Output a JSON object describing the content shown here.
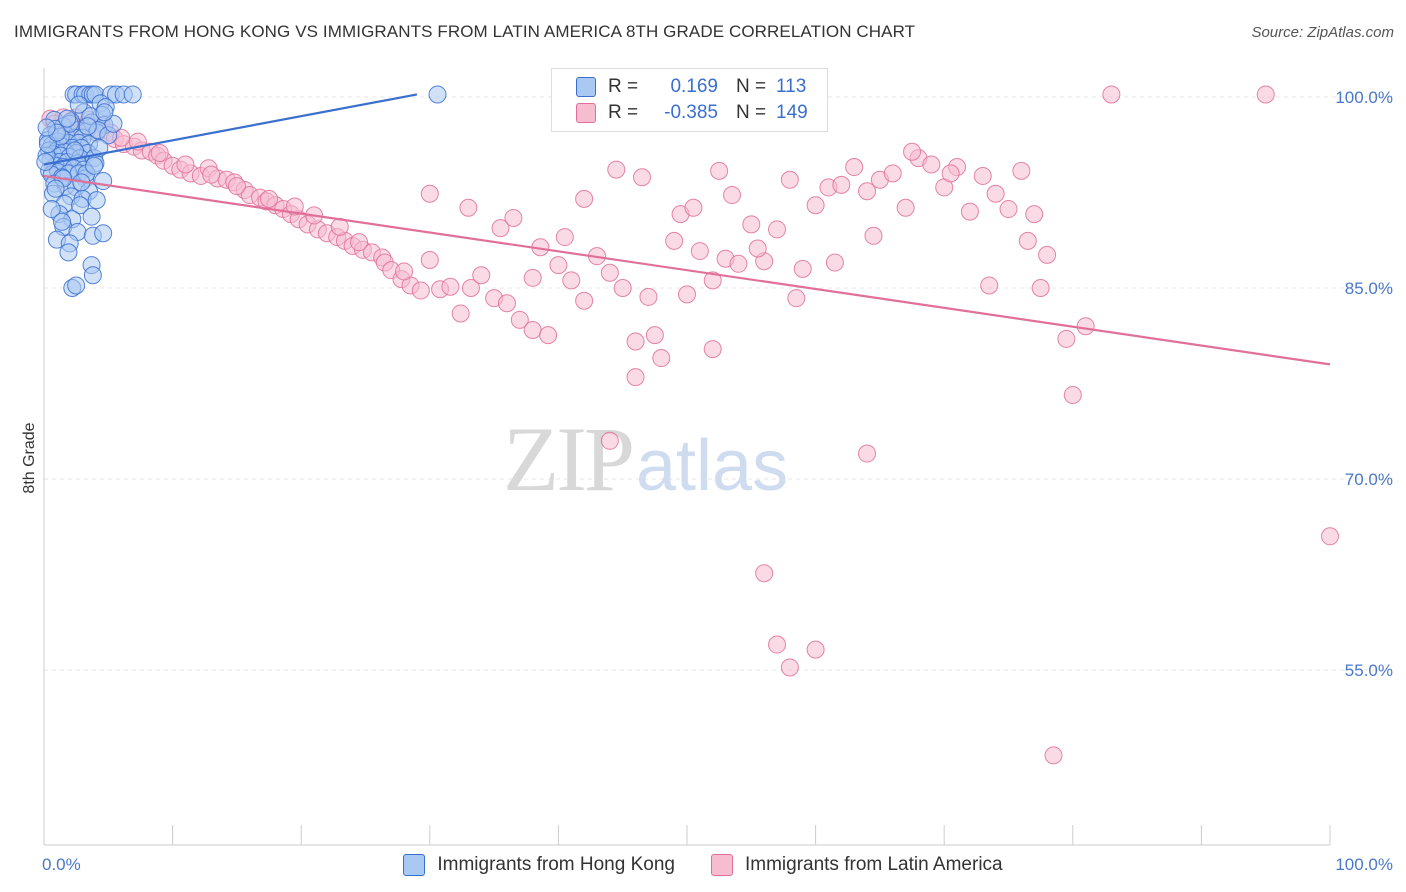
{
  "title": "IMMIGRANTS FROM HONG KONG VS IMMIGRANTS FROM LATIN AMERICA 8TH GRADE CORRELATION CHART",
  "source": "Source: ZipAtlas.com",
  "watermark": {
    "zip": "ZIP",
    "atlas": "atlas"
  },
  "legend": {
    "rows": [
      {
        "r_label": "R =",
        "r_value": "0.169",
        "n_label": "N =",
        "n_value": "113"
      },
      {
        "r_label": "R =",
        "r_value": "-0.385",
        "n_label": "N =",
        "n_value": "149"
      }
    ]
  },
  "colors": {
    "blue": "#3a6fd0",
    "blue_fill": "#a9c8f2",
    "pink": "#e0709a",
    "pink_fill": "#f6bcd0",
    "grid": "#e6e6e6",
    "tick_text": "#4a78c8"
  },
  "chart_data": {
    "type": "scatter",
    "title": "IMMIGRANTS FROM HONG KONG VS IMMIGRANTS FROM LATIN AMERICA 8TH GRADE CORRELATION CHART",
    "xlabel": "",
    "ylabel": "8th Grade",
    "xlim": [
      0,
      100
    ],
    "ylim": [
      40,
      101
    ],
    "x_tick_labels": [
      "0.0%",
      "100.0%"
    ],
    "y_ticks": [
      {
        "value": 100,
        "label": "100.0%"
      },
      {
        "value": 85,
        "label": "85.0%"
      },
      {
        "value": 70,
        "label": "70.0%"
      },
      {
        "value": 55,
        "label": "55.0%"
      }
    ],
    "grid": true,
    "legend_position": "bottom",
    "series": [
      {
        "name": "Immigrants from Hong Kong",
        "color": "#3a6fd0",
        "r": 0.169,
        "n": 113,
        "trend": {
          "x0": 0,
          "y0": 94.7,
          "x1": 29,
          "y1": 100.2
        },
        "points": [
          [
            2.3,
            100.2
          ],
          [
            2.5,
            100.2
          ],
          [
            3.0,
            100.2
          ],
          [
            3.2,
            100.2
          ],
          [
            3.6,
            100.2
          ],
          [
            3.8,
            100.2
          ],
          [
            4.0,
            100.2
          ],
          [
            5.2,
            100.2
          ],
          [
            5.6,
            100.2
          ],
          [
            6.2,
            100.2
          ],
          [
            6.9,
            100.2
          ],
          [
            30.6,
            100.2
          ],
          [
            4.4,
            99.5
          ],
          [
            4.8,
            99.2
          ],
          [
            3.1,
            98.8
          ],
          [
            4.5,
            98.6
          ],
          [
            0.8,
            98.2
          ],
          [
            2.1,
            98.1
          ],
          [
            3.7,
            98.0
          ],
          [
            4.7,
            97.8
          ],
          [
            1.5,
            97.7
          ],
          [
            0.9,
            97.5
          ],
          [
            2.6,
            97.4
          ],
          [
            3.3,
            97.3
          ],
          [
            4.1,
            97.2
          ],
          [
            0.5,
            97.0
          ],
          [
            1.7,
            97.0
          ],
          [
            2.4,
            96.8
          ],
          [
            3.0,
            96.8
          ],
          [
            0.3,
            96.6
          ],
          [
            1.1,
            96.5
          ],
          [
            1.9,
            96.4
          ],
          [
            2.7,
            96.4
          ],
          [
            3.5,
            96.3
          ],
          [
            0.6,
            96.2
          ],
          [
            1.4,
            96.1
          ],
          [
            2.2,
            96.0
          ],
          [
            2.9,
            96.0
          ],
          [
            0.4,
            95.8
          ],
          [
            1.0,
            95.8
          ],
          [
            1.6,
            95.7
          ],
          [
            2.5,
            95.6
          ],
          [
            3.4,
            95.6
          ],
          [
            0.7,
            95.5
          ],
          [
            1.3,
            95.4
          ],
          [
            2.0,
            95.3
          ],
          [
            2.8,
            95.2
          ],
          [
            3.9,
            95.2
          ],
          [
            0.5,
            95.0
          ],
          [
            1.2,
            94.9
          ],
          [
            1.8,
            94.9
          ],
          [
            2.6,
            94.8
          ],
          [
            4.0,
            94.8
          ],
          [
            0.9,
            94.6
          ],
          [
            1.5,
            94.5
          ],
          [
            2.3,
            94.4
          ],
          [
            3.1,
            94.3
          ],
          [
            0.4,
            94.2
          ],
          [
            1.1,
            94.1
          ],
          [
            1.9,
            94.0
          ],
          [
            2.7,
            94.0
          ],
          [
            0.6,
            93.9
          ],
          [
            1.4,
            93.7
          ],
          [
            3.2,
            93.6
          ],
          [
            4.6,
            93.4
          ],
          [
            0.8,
            93.2
          ],
          [
            1.7,
            93.0
          ],
          [
            2.5,
            92.9
          ],
          [
            3.5,
            92.6
          ],
          [
            0.7,
            92.4
          ],
          [
            2.1,
            92.2
          ],
          [
            3.0,
            92.0
          ],
          [
            4.1,
            91.9
          ],
          [
            1.6,
            91.6
          ],
          [
            2.8,
            91.5
          ],
          [
            1.2,
            90.8
          ],
          [
            3.7,
            90.6
          ],
          [
            2.2,
            90.4
          ],
          [
            1.5,
            89.8
          ],
          [
            2.6,
            89.4
          ],
          [
            3.8,
            89.1
          ],
          [
            4.6,
            89.3
          ],
          [
            1.0,
            88.8
          ],
          [
            2.0,
            88.5
          ],
          [
            1.9,
            87.8
          ],
          [
            3.7,
            86.8
          ],
          [
            3.8,
            86.0
          ],
          [
            2.2,
            85.0
          ],
          [
            2.5,
            85.2
          ],
          [
            1.3,
            96.9
          ],
          [
            2.0,
            97.9
          ],
          [
            3.6,
            98.5
          ],
          [
            4.2,
            97.4
          ],
          [
            1.8,
            98.3
          ],
          [
            0.2,
            95.4
          ],
          [
            0.1,
            94.9
          ],
          [
            0.3,
            96.3
          ],
          [
            5.0,
            97.0
          ],
          [
            1.0,
            97.2
          ],
          [
            2.4,
            95.8
          ],
          [
            3.3,
            94.0
          ],
          [
            1.5,
            93.6
          ],
          [
            0.9,
            92.8
          ],
          [
            4.3,
            96.0
          ],
          [
            5.4,
            97.9
          ],
          [
            0.6,
            91.2
          ],
          [
            2.9,
            93.3
          ],
          [
            3.9,
            94.6
          ],
          [
            1.4,
            90.2
          ],
          [
            4.7,
            98.8
          ],
          [
            0.2,
            97.6
          ],
          [
            2.7,
            99.4
          ],
          [
            3.4,
            97.7
          ]
        ]
      },
      {
        "name": "Immigrants from Latin America",
        "color": "#e0709a",
        "r": -0.385,
        "n": 149,
        "trend": {
          "x0": 0,
          "y0": 93.8,
          "x1": 100,
          "y1": 79.0
        },
        "points": [
          [
            0.5,
            98.3
          ],
          [
            1.5,
            98.4
          ],
          [
            2.5,
            98.4
          ],
          [
            3.5,
            98.2
          ],
          [
            4.5,
            97.8
          ],
          [
            5.2,
            97.2
          ],
          [
            0.8,
            97.9
          ],
          [
            2.0,
            98.0
          ],
          [
            3.0,
            97.6
          ],
          [
            4.0,
            97.4
          ],
          [
            1.2,
            97.1
          ],
          [
            2.7,
            97.0
          ],
          [
            5.5,
            96.7
          ],
          [
            6.2,
            96.3
          ],
          [
            7.0,
            96.1
          ],
          [
            7.6,
            95.8
          ],
          [
            8.3,
            95.7
          ],
          [
            8.8,
            95.4
          ],
          [
            9.3,
            95.0
          ],
          [
            10.0,
            94.6
          ],
          [
            10.6,
            94.3
          ],
          [
            11.4,
            94.0
          ],
          [
            12.2,
            93.8
          ],
          [
            12.8,
            94.4
          ],
          [
            13.5,
            93.6
          ],
          [
            14.2,
            93.5
          ],
          [
            14.8,
            93.3
          ],
          [
            15.6,
            92.7
          ],
          [
            16.0,
            92.3
          ],
          [
            16.8,
            92.1
          ],
          [
            17.3,
            91.8
          ],
          [
            18.0,
            91.5
          ],
          [
            18.6,
            91.2
          ],
          [
            19.2,
            90.8
          ],
          [
            19.8,
            90.4
          ],
          [
            20.5,
            90.0
          ],
          [
            21.3,
            89.6
          ],
          [
            22.0,
            89.3
          ],
          [
            22.8,
            89.0
          ],
          [
            23.4,
            88.7
          ],
          [
            24.0,
            88.3
          ],
          [
            24.8,
            88.0
          ],
          [
            25.5,
            87.8
          ],
          [
            26.3,
            87.4
          ],
          [
            6.0,
            96.8
          ],
          [
            7.3,
            96.5
          ],
          [
            9.0,
            95.6
          ],
          [
            11.0,
            94.7
          ],
          [
            13.0,
            93.9
          ],
          [
            15.0,
            93.0
          ],
          [
            17.5,
            92.0
          ],
          [
            19.5,
            91.4
          ],
          [
            21.0,
            90.7
          ],
          [
            23.0,
            89.8
          ],
          [
            24.5,
            88.6
          ],
          [
            26.5,
            87.0
          ],
          [
            27.0,
            86.4
          ],
          [
            27.8,
            85.7
          ],
          [
            28.5,
            85.2
          ],
          [
            29.3,
            84.8
          ],
          [
            30.0,
            87.2
          ],
          [
            30.8,
            84.9
          ],
          [
            31.6,
            85.1
          ],
          [
            32.4,
            83.0
          ],
          [
            33.2,
            85.0
          ],
          [
            34.0,
            86.0
          ],
          [
            35.0,
            84.2
          ],
          [
            36.0,
            83.8
          ],
          [
            37.0,
            82.5
          ],
          [
            38.0,
            81.7
          ],
          [
            38.6,
            88.2
          ],
          [
            39.2,
            81.3
          ],
          [
            40.0,
            86.8
          ],
          [
            41.0,
            85.6
          ],
          [
            42.0,
            84.0
          ],
          [
            43.0,
            87.5
          ],
          [
            44.0,
            86.2
          ],
          [
            45.0,
            85.0
          ],
          [
            46.0,
            80.8
          ],
          [
            47.0,
            84.3
          ],
          [
            48.0,
            79.5
          ],
          [
            49.0,
            88.7
          ],
          [
            50.0,
            84.5
          ],
          [
            51.0,
            87.9
          ],
          [
            52.0,
            85.6
          ],
          [
            53.0,
            87.3
          ],
          [
            54.0,
            86.9
          ],
          [
            55.0,
            90.0
          ],
          [
            56.0,
            87.1
          ],
          [
            57.0,
            89.6
          ],
          [
            58.0,
            93.5
          ],
          [
            59.0,
            86.5
          ],
          [
            60.0,
            91.5
          ],
          [
            61.0,
            92.9
          ],
          [
            62.0,
            93.1
          ],
          [
            63.0,
            94.5
          ],
          [
            64.0,
            92.6
          ],
          [
            65.0,
            93.5
          ],
          [
            66.0,
            94.0
          ],
          [
            67.0,
            91.3
          ],
          [
            68.0,
            95.2
          ],
          [
            69.0,
            94.7
          ],
          [
            70.0,
            92.9
          ],
          [
            71.0,
            94.5
          ],
          [
            72.0,
            91.0
          ],
          [
            73.0,
            93.8
          ],
          [
            74.0,
            92.4
          ],
          [
            75.0,
            91.2
          ],
          [
            76.0,
            94.2
          ],
          [
            77.0,
            90.8
          ],
          [
            30.0,
            92.4
          ],
          [
            33.0,
            91.3
          ],
          [
            36.5,
            90.5
          ],
          [
            40.5,
            89.0
          ],
          [
            44.5,
            94.3
          ],
          [
            46.5,
            93.7
          ],
          [
            49.5,
            90.8
          ],
          [
            52.5,
            94.2
          ],
          [
            55.5,
            88.1
          ],
          [
            58.5,
            84.2
          ],
          [
            61.5,
            87.0
          ],
          [
            64.5,
            89.1
          ],
          [
            67.5,
            95.7
          ],
          [
            70.5,
            94.0
          ],
          [
            73.5,
            85.2
          ],
          [
            76.5,
            88.7
          ],
          [
            78.0,
            87.6
          ],
          [
            79.5,
            81.0
          ],
          [
            81.0,
            82.0
          ],
          [
            77.5,
            85.0
          ],
          [
            80.0,
            76.6
          ],
          [
            83.0,
            100.2
          ],
          [
            95.0,
            100.2
          ],
          [
            100.0,
            65.5
          ],
          [
            64.0,
            72.0
          ],
          [
            56.0,
            62.6
          ],
          [
            52.0,
            80.2
          ],
          [
            46.0,
            78.0
          ],
          [
            44.0,
            73.0
          ],
          [
            57.0,
            57.0
          ],
          [
            60.0,
            56.6
          ],
          [
            58.0,
            55.2
          ],
          [
            78.5,
            48.3
          ],
          [
            42.0,
            92.0
          ],
          [
            47.5,
            81.3
          ],
          [
            53.5,
            92.3
          ],
          [
            28.0,
            86.3
          ],
          [
            35.5,
            89.7
          ],
          [
            38.0,
            85.8
          ],
          [
            50.5,
            91.3
          ]
        ]
      }
    ]
  }
}
